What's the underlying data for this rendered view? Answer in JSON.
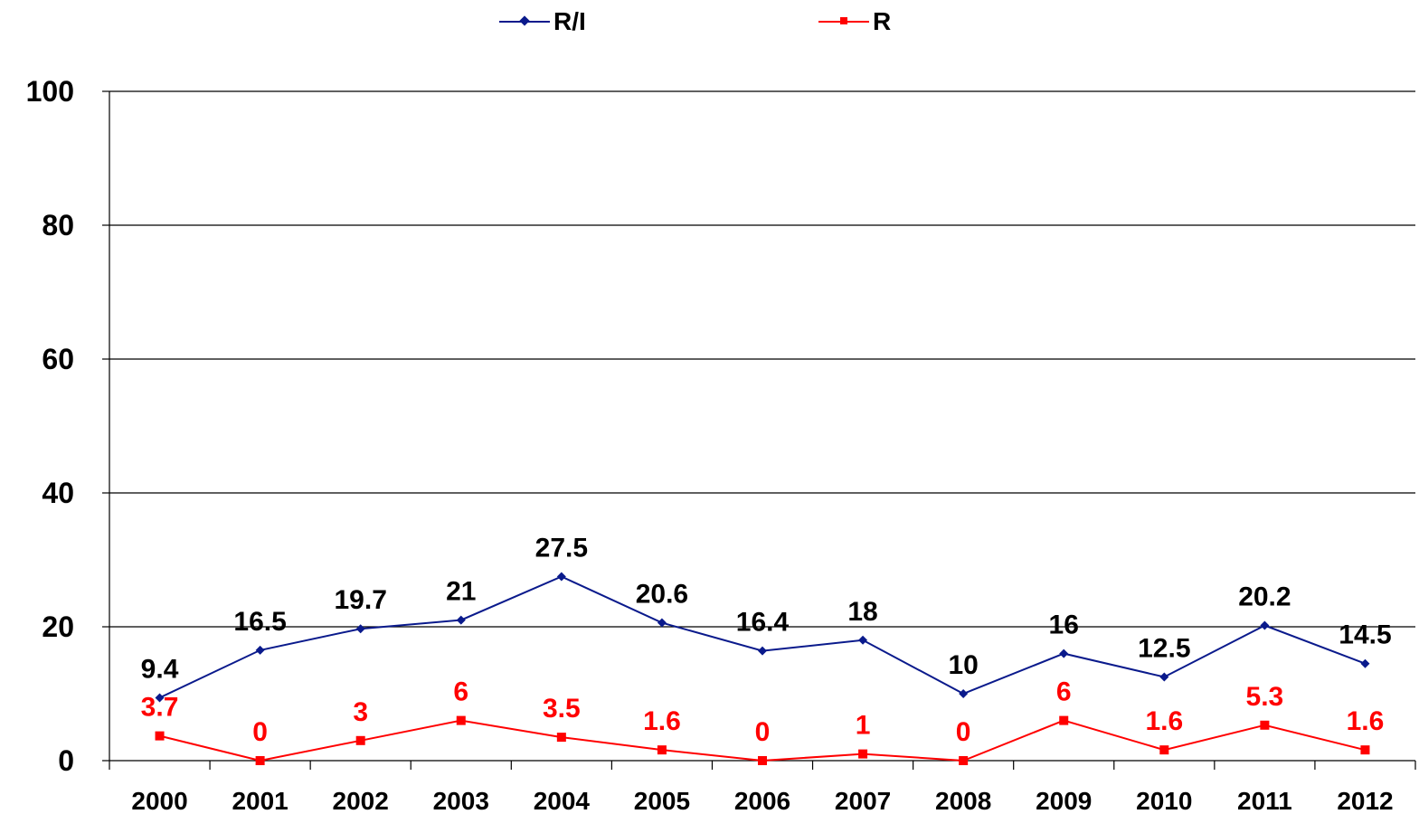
{
  "chart_data": {
    "type": "line",
    "categories": [
      "2000",
      "2001",
      "2002",
      "2003",
      "2004",
      "2005",
      "2006",
      "2007",
      "2008",
      "2009",
      "2010",
      "2011",
      "2012"
    ],
    "series": [
      {
        "name": "R/I",
        "color": "#0A1A8C",
        "values": [
          9.4,
          16.5,
          19.7,
          21,
          27.5,
          20.6,
          16.4,
          18,
          10,
          16,
          12.5,
          20.2,
          14.5
        ],
        "labels": [
          "9.4",
          "16.5",
          "19.7",
          "21",
          "27.5",
          "20.6",
          "16.4",
          "18",
          "10",
          "16",
          "12.5",
          "20.2",
          "14.5"
        ],
        "label_color": "#000000",
        "marker": "diamond"
      },
      {
        "name": "R",
        "color": "#FF0000",
        "values": [
          3.7,
          0,
          3,
          6,
          3.5,
          1.6,
          0,
          1,
          0,
          6,
          1.6,
          5.3,
          1.6
        ],
        "labels": [
          "3.7",
          "0",
          "3",
          "6",
          "3.5",
          "1.6",
          "0",
          "1",
          "0",
          "6",
          "1.6",
          "5.3",
          "1.6"
        ],
        "label_color": "#FF0000",
        "marker": "square"
      }
    ],
    "ylim": [
      0,
      100
    ],
    "yticks": [
      "0",
      "20",
      "40",
      "60",
      "80",
      "100"
    ],
    "grid": true,
    "legend_position": "top-center",
    "title": "",
    "xlabel": "",
    "ylabel": ""
  }
}
